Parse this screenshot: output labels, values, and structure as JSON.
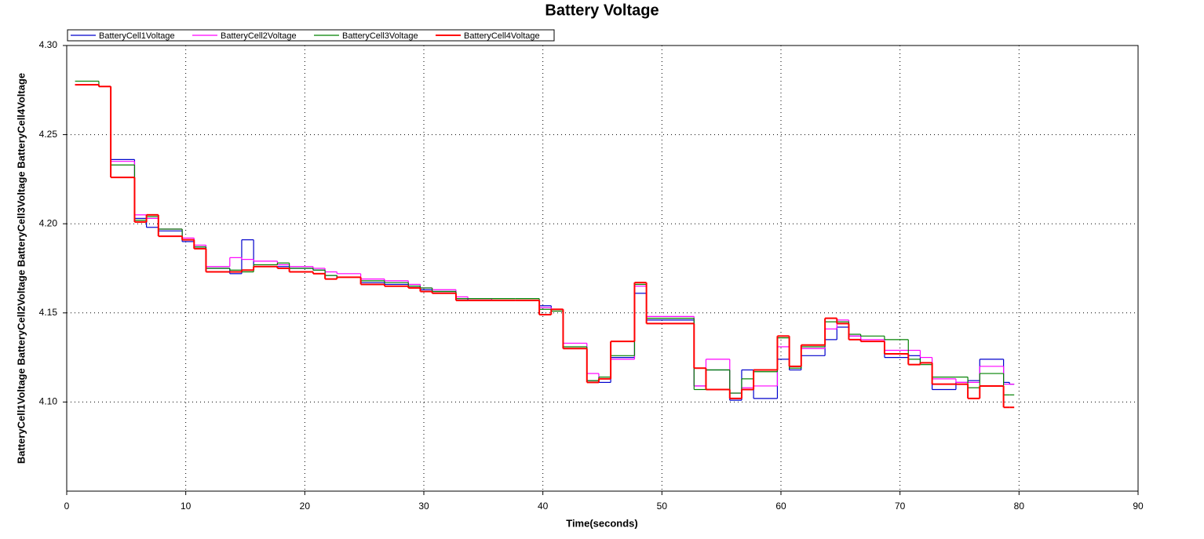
{
  "chart_data": {
    "type": "step",
    "title": "Battery Voltage",
    "x_label": "Time(seconds)",
    "y_label": "BatteryCell1Voltage BatteryCell2Voltage BatteryCell3Voltage BatteryCell4Voltage",
    "x": [
      0.7,
      2.7,
      3.7,
      5.7,
      6.7,
      7.7,
      9.7,
      10.7,
      11.7,
      13.7,
      14.7,
      15.7,
      17.7,
      18.7,
      20.7,
      21.7,
      22.7,
      24.7,
      26.7,
      28.7,
      29.7,
      30.7,
      32.7,
      33.7,
      35.7,
      37.7,
      39.7,
      40.7,
      41.7,
      43.7,
      44.7,
      45.7,
      47.7,
      48.7,
      52.7,
      53.7,
      55.7,
      56.7,
      57.7,
      59.7,
      60.7,
      61.7,
      63.7,
      64.7,
      65.7,
      66.7,
      68.7,
      70.7,
      71.7,
      72.7,
      74.7,
      75.7,
      76.7,
      78.7,
      79.2
    ],
    "series": [
      {
        "name": "BatteryCell1Voltage",
        "color": "#0000cc",
        "values": [
          4.278,
          4.277,
          4.236,
          4.203,
          4.198,
          4.196,
          4.19,
          4.187,
          4.175,
          4.172,
          4.191,
          4.176,
          4.176,
          4.175,
          4.174,
          4.171,
          4.17,
          4.167,
          4.166,
          4.165,
          4.163,
          4.162,
          4.158,
          4.157,
          4.157,
          4.157,
          4.154,
          4.152,
          4.13,
          4.112,
          4.111,
          4.125,
          4.161,
          4.146,
          4.109,
          4.118,
          4.101,
          4.118,
          4.102,
          4.124,
          4.118,
          4.126,
          4.135,
          4.142,
          4.137,
          4.134,
          4.125,
          4.126,
          4.122,
          4.107,
          4.111,
          4.112,
          4.124,
          4.111,
          4.11
        ]
      },
      {
        "name": "BatteryCell2Voltage",
        "color": "#ff00ff",
        "values": [
          4.278,
          4.277,
          4.235,
          4.205,
          4.203,
          4.197,
          4.192,
          4.188,
          4.176,
          4.181,
          4.18,
          4.179,
          4.177,
          4.176,
          4.175,
          4.173,
          4.172,
          4.169,
          4.168,
          4.166,
          4.164,
          4.163,
          4.159,
          4.158,
          4.157,
          4.157,
          4.153,
          4.152,
          4.133,
          4.116,
          4.113,
          4.124,
          4.165,
          4.148,
          4.109,
          4.124,
          4.105,
          4.108,
          4.109,
          4.131,
          4.12,
          4.13,
          4.141,
          4.146,
          4.137,
          4.135,
          4.129,
          4.129,
          4.125,
          4.113,
          4.111,
          4.111,
          4.12,
          4.11,
          4.11
        ]
      },
      {
        "name": "BatteryCell3Voltage",
        "color": "#008000",
        "values": [
          4.28,
          4.277,
          4.233,
          4.202,
          4.204,
          4.197,
          4.191,
          4.187,
          4.175,
          4.174,
          4.173,
          4.177,
          4.178,
          4.175,
          4.174,
          4.171,
          4.17,
          4.168,
          4.167,
          4.165,
          4.164,
          4.162,
          4.158,
          4.158,
          4.158,
          4.158,
          4.152,
          4.151,
          4.131,
          4.112,
          4.114,
          4.126,
          4.166,
          4.147,
          4.107,
          4.118,
          4.105,
          4.113,
          4.117,
          4.136,
          4.119,
          4.131,
          4.145,
          4.145,
          4.138,
          4.137,
          4.135,
          4.124,
          4.121,
          4.114,
          4.114,
          4.108,
          4.116,
          4.104,
          4.104
        ]
      },
      {
        "name": "BatteryCell4Voltage",
        "color": "#ff0000",
        "values": [
          4.278,
          4.277,
          4.226,
          4.201,
          4.205,
          4.193,
          4.191,
          4.186,
          4.173,
          4.173,
          4.174,
          4.176,
          4.175,
          4.173,
          4.172,
          4.169,
          4.17,
          4.166,
          4.165,
          4.164,
          4.162,
          4.161,
          4.157,
          4.157,
          4.157,
          4.157,
          4.149,
          4.152,
          4.13,
          4.111,
          4.113,
          4.134,
          4.167,
          4.144,
          4.119,
          4.107,
          4.102,
          4.107,
          4.118,
          4.137,
          4.12,
          4.132,
          4.147,
          4.144,
          4.135,
          4.134,
          4.127,
          4.121,
          4.122,
          4.11,
          4.11,
          4.102,
          4.109,
          4.097,
          4.097
        ]
      }
    ],
    "xlim": [
      0,
      90
    ],
    "xticks": [
      0,
      10,
      20,
      30,
      40,
      50,
      60,
      70,
      80,
      90
    ],
    "ylim": [
      4.05,
      4.3
    ],
    "yticks": [
      {
        "value": 4.1,
        "label": "4.10"
      },
      {
        "value": 4.15,
        "label": "4.15"
      },
      {
        "value": 4.2,
        "label": "4.20"
      },
      {
        "value": 4.25,
        "label": "4.25"
      },
      {
        "value": 4.3,
        "label": "4.30"
      }
    ],
    "grid": true,
    "legend": "top-left"
  }
}
